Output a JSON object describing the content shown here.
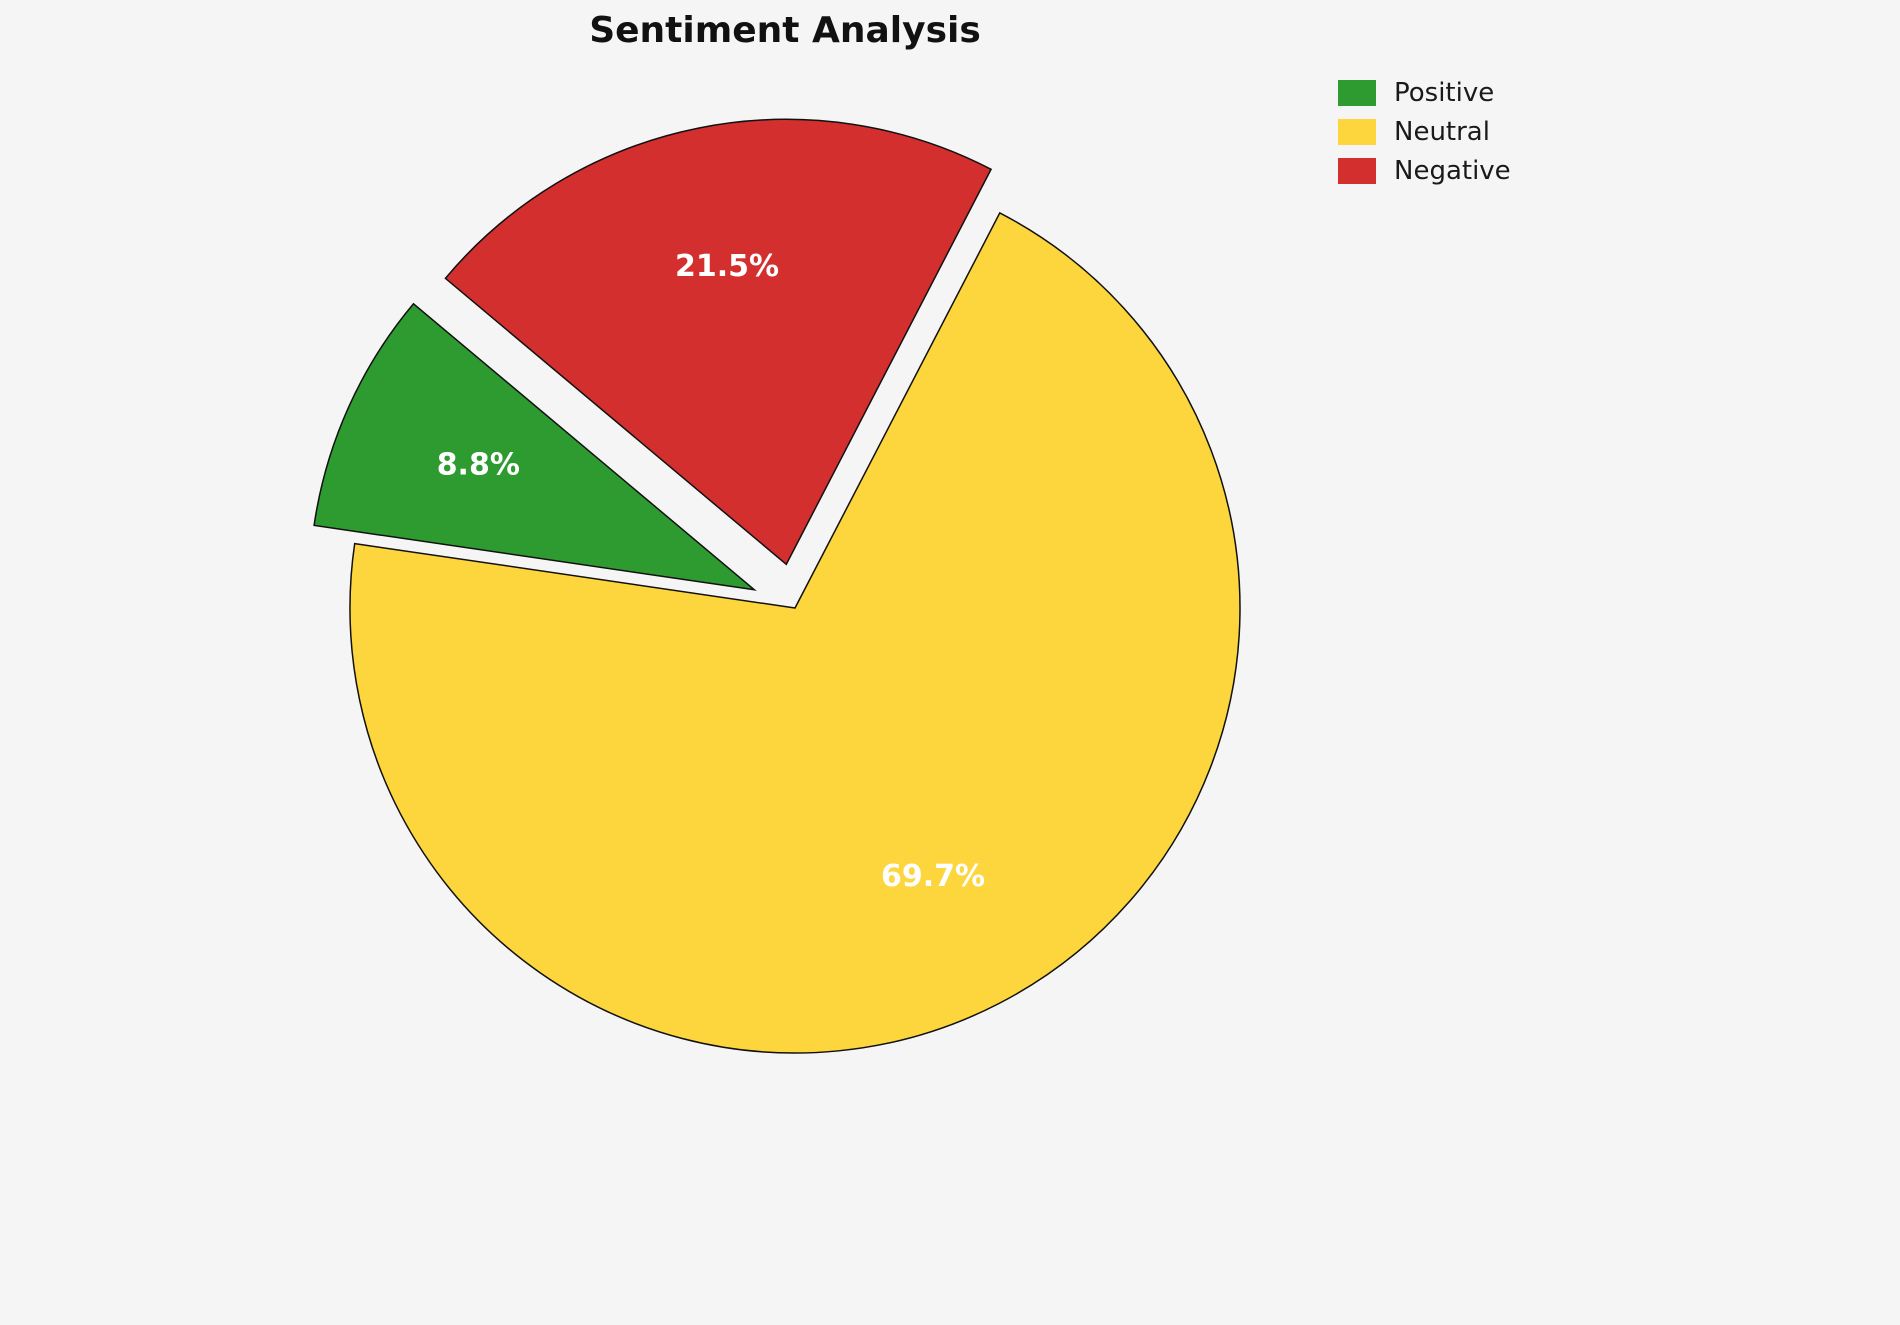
{
  "chart_data": {
    "type": "pie",
    "title": "Sentiment Analysis",
    "startangle": 140,
    "direction": "counterclockwise",
    "pctdistance": 0.68,
    "edge_color": "#111111",
    "background_color": "#f5f5f5",
    "legend_position": "upper right",
    "slices": [
      {
        "label": "Positive",
        "value": 8.8,
        "pct_label": "8.8%",
        "color": "#2e9b30",
        "explode": 0.1
      },
      {
        "label": "Neutral",
        "value": 69.7,
        "pct_label": "69.7%",
        "color": "#fdd53c",
        "explode": 0
      },
      {
        "label": "Negative",
        "value": 21.5,
        "pct_label": "21.5%",
        "color": "#d32f2f",
        "explode": 0.1
      }
    ]
  }
}
